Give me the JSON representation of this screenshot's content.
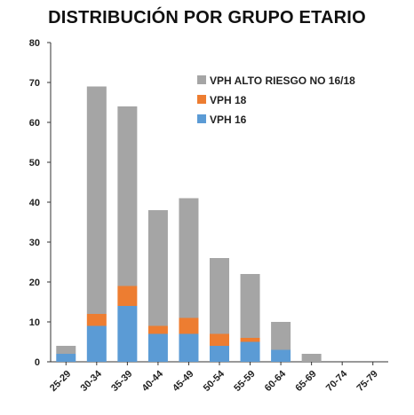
{
  "chart_data": {
    "type": "bar",
    "stacked": true,
    "title": "DISTRIBUCIÓN POR GRUPO ETARIO",
    "xlabel": "",
    "ylabel": "",
    "ylim": [
      0,
      80
    ],
    "yticks": [
      0,
      10,
      20,
      30,
      40,
      50,
      60,
      70,
      80
    ],
    "grid": false,
    "legend_position": "top-right",
    "categories": [
      "25-29",
      "30-34",
      "35-39",
      "40-44",
      "45-49",
      "50-54",
      "55-59",
      "60-64",
      "65-69",
      "70-74",
      "75-79"
    ],
    "series": [
      {
        "name": "VPH 16",
        "color": "#5b9bd5",
        "values": [
          2,
          9,
          14,
          7,
          7,
          4,
          5,
          3,
          0,
          0,
          0
        ]
      },
      {
        "name": "VPH 18",
        "color": "#ed7d31",
        "values": [
          0,
          3,
          5,
          2,
          4,
          3,
          1,
          0,
          0,
          0,
          0
        ]
      },
      {
        "name": "VPH ALTO RIESGO NO 16/18",
        "color": "#a5a5a5",
        "values": [
          2,
          57,
          45,
          29,
          30,
          19,
          16,
          7,
          2,
          0,
          0
        ]
      }
    ],
    "legend_order": [
      "VPH ALTO RIESGO NO 16/18",
      "VPH 18",
      "VPH 16"
    ]
  }
}
